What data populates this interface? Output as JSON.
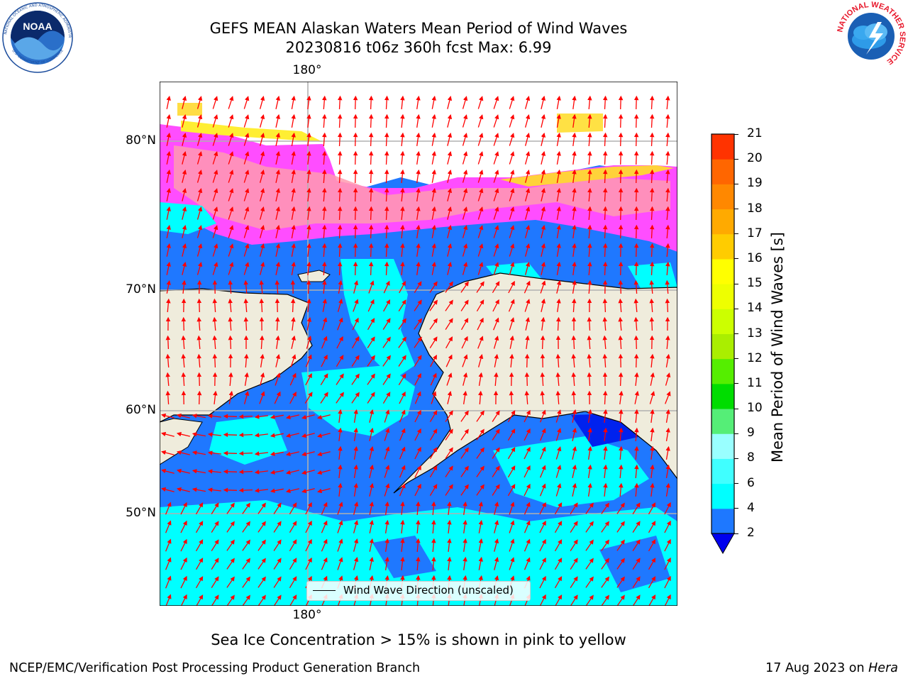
{
  "title": {
    "line1": "GEFS MEAN Alaskan Waters Mean Period of Wind Waves",
    "line2": "20230816 t06z 360h fcst   Max: 6.99"
  },
  "map": {
    "lon_label_top": "180°",
    "lon_label_bottom": "180°",
    "lat_labels": [
      "80°N",
      "70°N",
      "60°N",
      "50°N"
    ],
    "legend_label": "Wind Wave Direction (unscaled)",
    "colors": {
      "land": "#efecdc",
      "ocean_low": "#1f78ff",
      "ocean_mid": "#00ffff",
      "ice_pink": "#ff33ff",
      "ice_orange": "#ff9966",
      "ice_yellow": "#ffee33",
      "arrow": "#ff0000",
      "grid": "#b0b0b0"
    }
  },
  "colorbar": {
    "title": "Mean Period of Wind Waves [s]",
    "ticks": [
      "2",
      "4",
      "6",
      "8",
      "9",
      "10",
      "11",
      "12",
      "13",
      "14",
      "15",
      "16",
      "17",
      "18",
      "19",
      "20",
      "21"
    ],
    "colors": [
      "#1e78ff",
      "#00ffff",
      "#40ffff",
      "#99ffff",
      "#55ee77",
      "#00dd00",
      "#55ee00",
      "#aaee00",
      "#ccff00",
      "#eeff00",
      "#ffff00",
      "#ffcc00",
      "#ffaa00",
      "#ff8800",
      "#ff6600",
      "#ff3300",
      "#ff0000"
    ],
    "extend_color": "#0000ee"
  },
  "caption": "Sea Ice Concentration > 15% is shown in pink to yellow",
  "footer": {
    "left": "NCEP/EMC/Verification Post Processing Product Generation Branch",
    "right_prefix": "17 Aug 2023 on ",
    "right_host": "Hera"
  },
  "logos": {
    "noaa_text": "NOAA",
    "noaa_ring": "NATIONAL OCEANIC AND ATMOSPHERIC ADMINISTRATION",
    "noaa_ring_bottom": "U.S. DEPARTMENT OF COMMERCE",
    "nws_ring": "NATIONAL WEATHER SERVICE"
  }
}
